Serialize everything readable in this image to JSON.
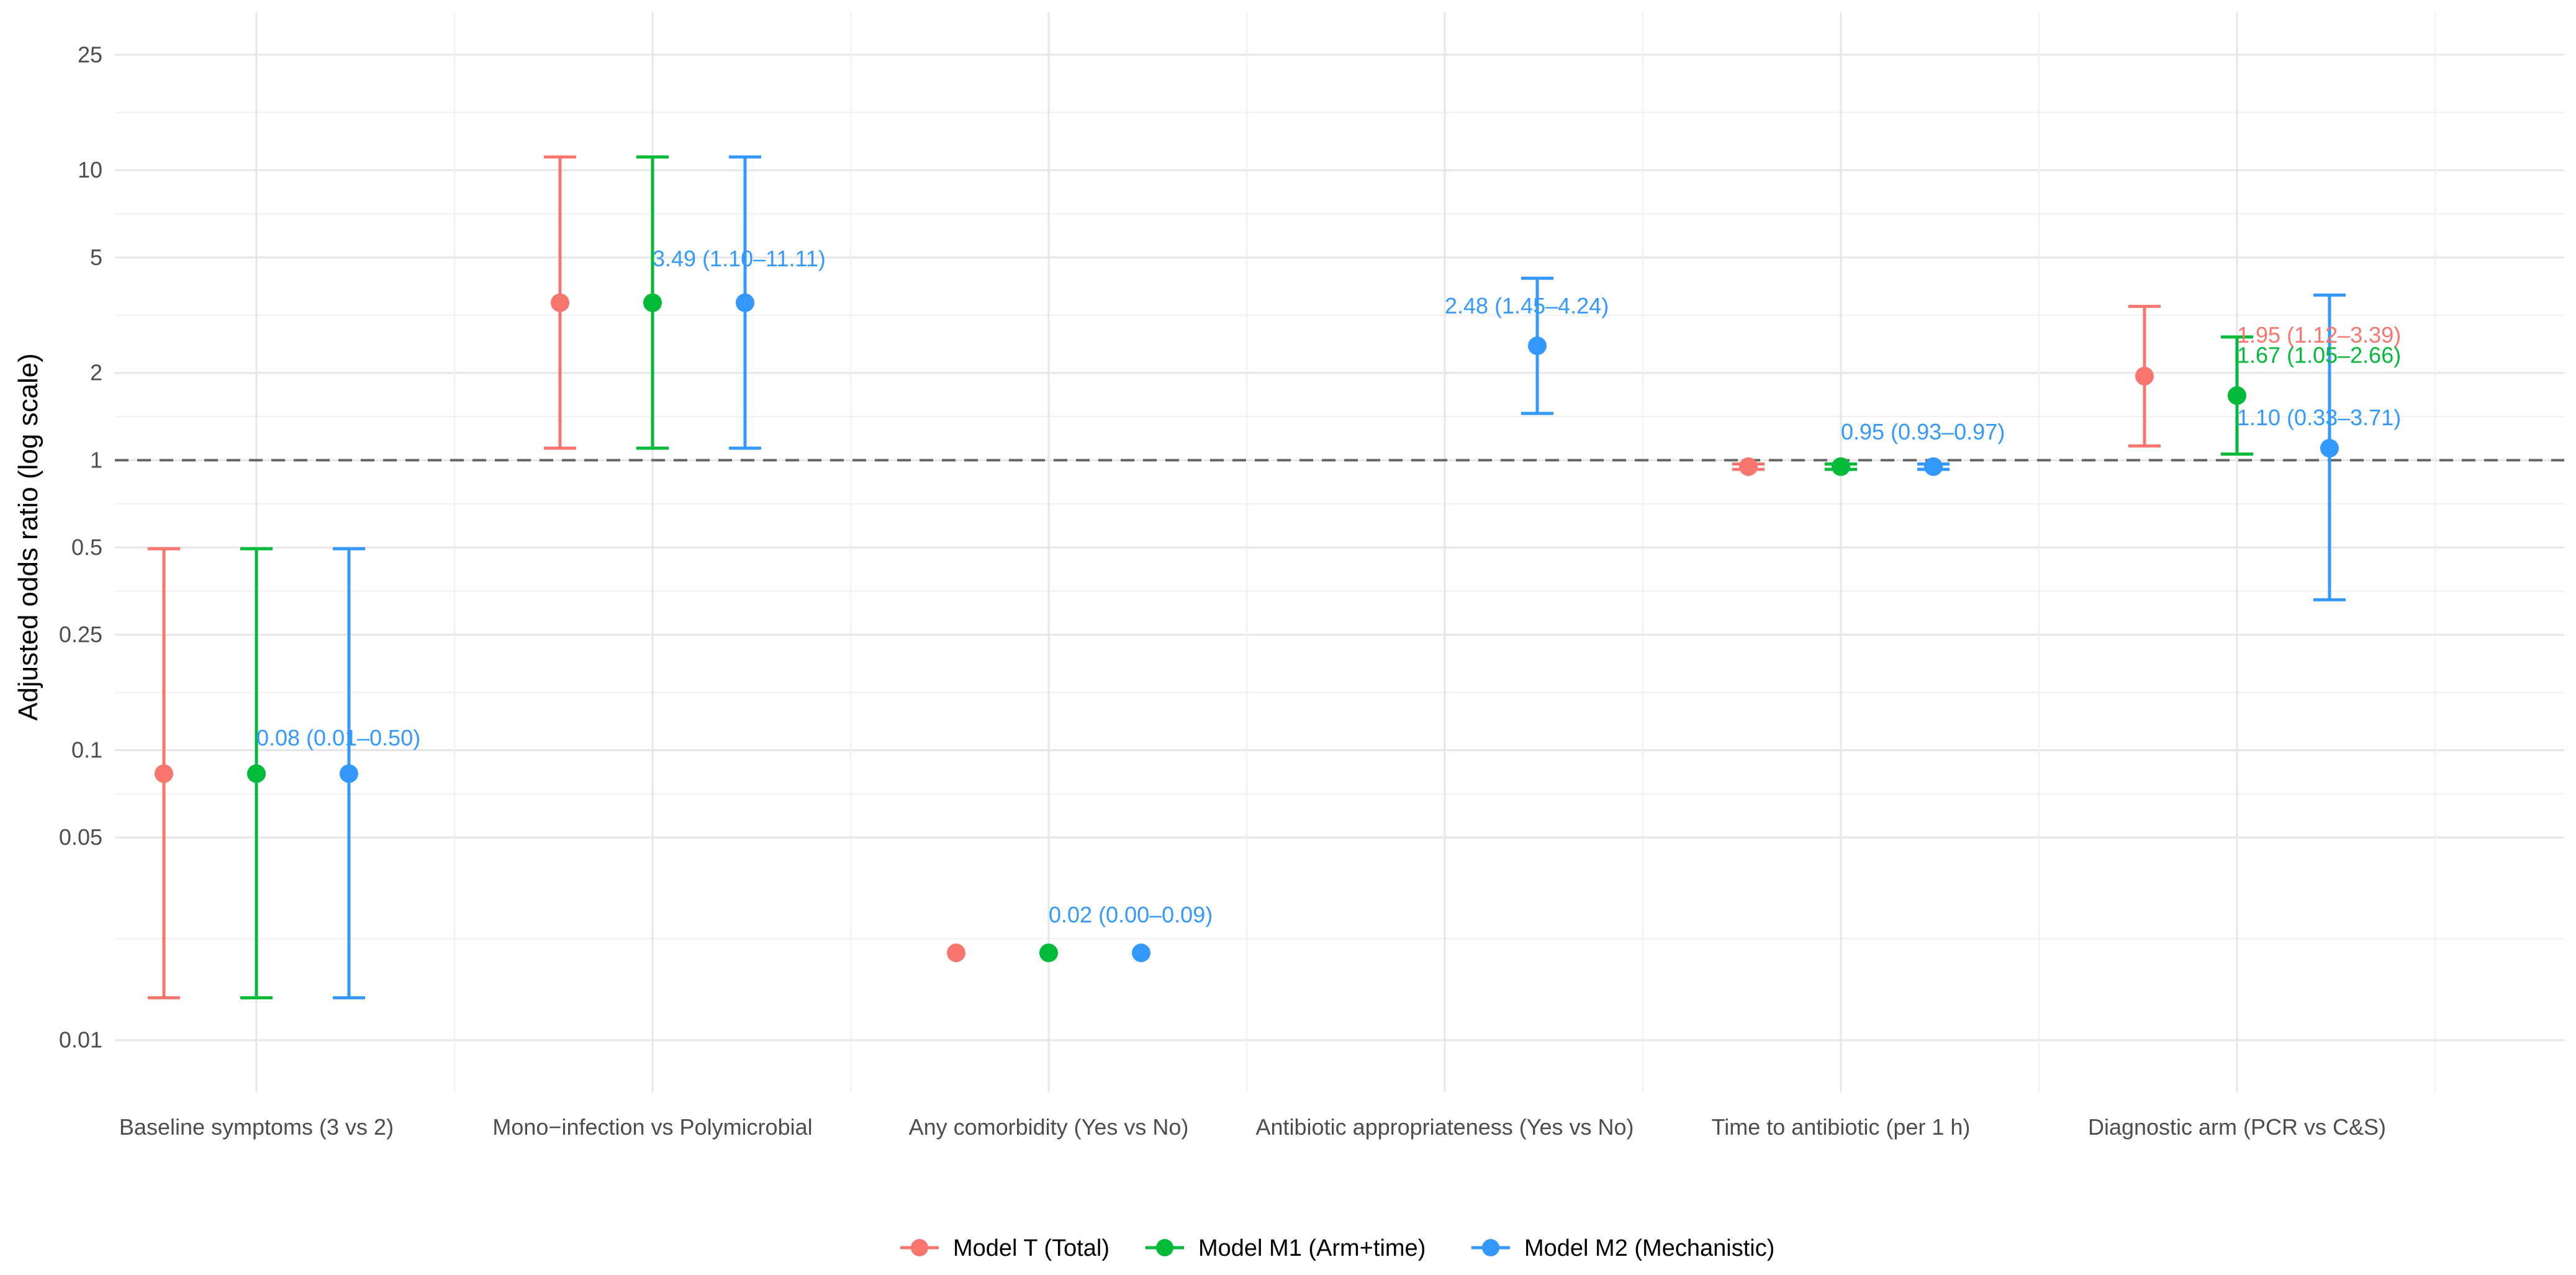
{
  "chart_data": {
    "type": "scatter",
    "ylabel": "Adjusted odds ratio (log scale)",
    "xlabel": "",
    "y_scale": "log",
    "ylim": [
      0.0066,
      35
    ],
    "grid": true,
    "reference_line": {
      "y": 1,
      "style": "dashed",
      "color": "#666666"
    },
    "y_ticks": [
      {
        "value": 0.01,
        "label": "0.01"
      },
      {
        "value": 0.05,
        "label": "0.05"
      },
      {
        "value": 0.1,
        "label": "0.1"
      },
      {
        "value": 0.25,
        "label": "0.25"
      },
      {
        "value": 0.5,
        "label": "0.5"
      },
      {
        "value": 1,
        "label": "1"
      },
      {
        "value": 2,
        "label": "2"
      },
      {
        "value": 5,
        "label": "5"
      },
      {
        "value": 10,
        "label": "10"
      },
      {
        "value": 25,
        "label": "25"
      }
    ],
    "categories": [
      "Baseline symptoms (3 vs 2)",
      "Mono−infection vs Polymicrobial",
      "Any comorbidity (Yes vs No)",
      "Antibiotic appropriateness (Yes vs No)",
      "Time to antibiotic (per 1 h)",
      "Diagnostic arm (PCR vs C&S)"
    ],
    "legend_position": "bottom",
    "series": [
      {
        "name": "Model T (Total)",
        "color": "#F8766D",
        "points": [
          {
            "category": 0,
            "or": 0.083,
            "lo": 0.014,
            "hi": 0.495
          },
          {
            "category": 1,
            "or": 3.49,
            "lo": 1.1,
            "hi": 11.11
          },
          {
            "category": 2,
            "or": 0.02,
            "lo": null,
            "hi": null
          },
          {
            "category": 4,
            "or": 0.95,
            "lo": 0.93,
            "hi": 0.97
          },
          {
            "category": 5,
            "or": 1.95,
            "lo": 1.12,
            "hi": 3.39
          }
        ]
      },
      {
        "name": "Model M1 (Arm+time)",
        "color": "#00BA38",
        "points": [
          {
            "category": 0,
            "or": 0.083,
            "lo": 0.014,
            "hi": 0.495
          },
          {
            "category": 1,
            "or": 3.49,
            "lo": 1.1,
            "hi": 11.11
          },
          {
            "category": 2,
            "or": 0.02,
            "lo": null,
            "hi": null
          },
          {
            "category": 4,
            "or": 0.95,
            "lo": 0.93,
            "hi": 0.97
          },
          {
            "category": 5,
            "or": 1.67,
            "lo": 1.05,
            "hi": 2.66
          }
        ]
      },
      {
        "name": "Model M2 (Mechanistic)",
        "color": "#3399FF",
        "points": [
          {
            "category": 0,
            "or": 0.083,
            "lo": 0.014,
            "hi": 0.495
          },
          {
            "category": 1,
            "or": 3.49,
            "lo": 1.1,
            "hi": 11.11
          },
          {
            "category": 2,
            "or": 0.02,
            "lo": null,
            "hi": null
          },
          {
            "category": 3,
            "or": 2.48,
            "lo": 1.45,
            "hi": 4.24
          },
          {
            "category": 4,
            "or": 0.95,
            "lo": 0.93,
            "hi": 0.97
          },
          {
            "category": 5,
            "or": 1.1,
            "lo": 0.33,
            "hi": 3.71
          }
        ]
      }
    ],
    "annotations": [
      {
        "category": 0,
        "series": 1,
        "text": "0.08 (0.01–0.50)",
        "color": "#3399FF",
        "y": 0.11
      },
      {
        "category": 1,
        "series": 1,
        "text": "3.49 (1.10–11.11)",
        "color": "#3399FF",
        "y": 4.95
      },
      {
        "category": 2,
        "series": 1,
        "text": "0.02 (0.00–0.09)",
        "color": "#3399FF",
        "y": 0.027
      },
      {
        "category": 3,
        "series": 1,
        "text": "2.48 (1.45–4.24)",
        "color": "#3399FF",
        "y": 3.4
      },
      {
        "category": 4,
        "series": 1,
        "text": "0.95 (0.93–0.97)",
        "color": "#3399FF",
        "y": 1.25
      },
      {
        "category": 5,
        "series": 1,
        "text": "1.95 (1.12–3.39)",
        "color": "#F8766D",
        "y": 2.7
      },
      {
        "category": 5,
        "series": 1,
        "text": "1.67 (1.05–2.66)",
        "color": "#00BA38",
        "y": 2.3
      },
      {
        "category": 5,
        "series": 1,
        "text": "1.10 (0.33–3.71)",
        "color": "#3399FF",
        "y": 1.4
      }
    ]
  }
}
